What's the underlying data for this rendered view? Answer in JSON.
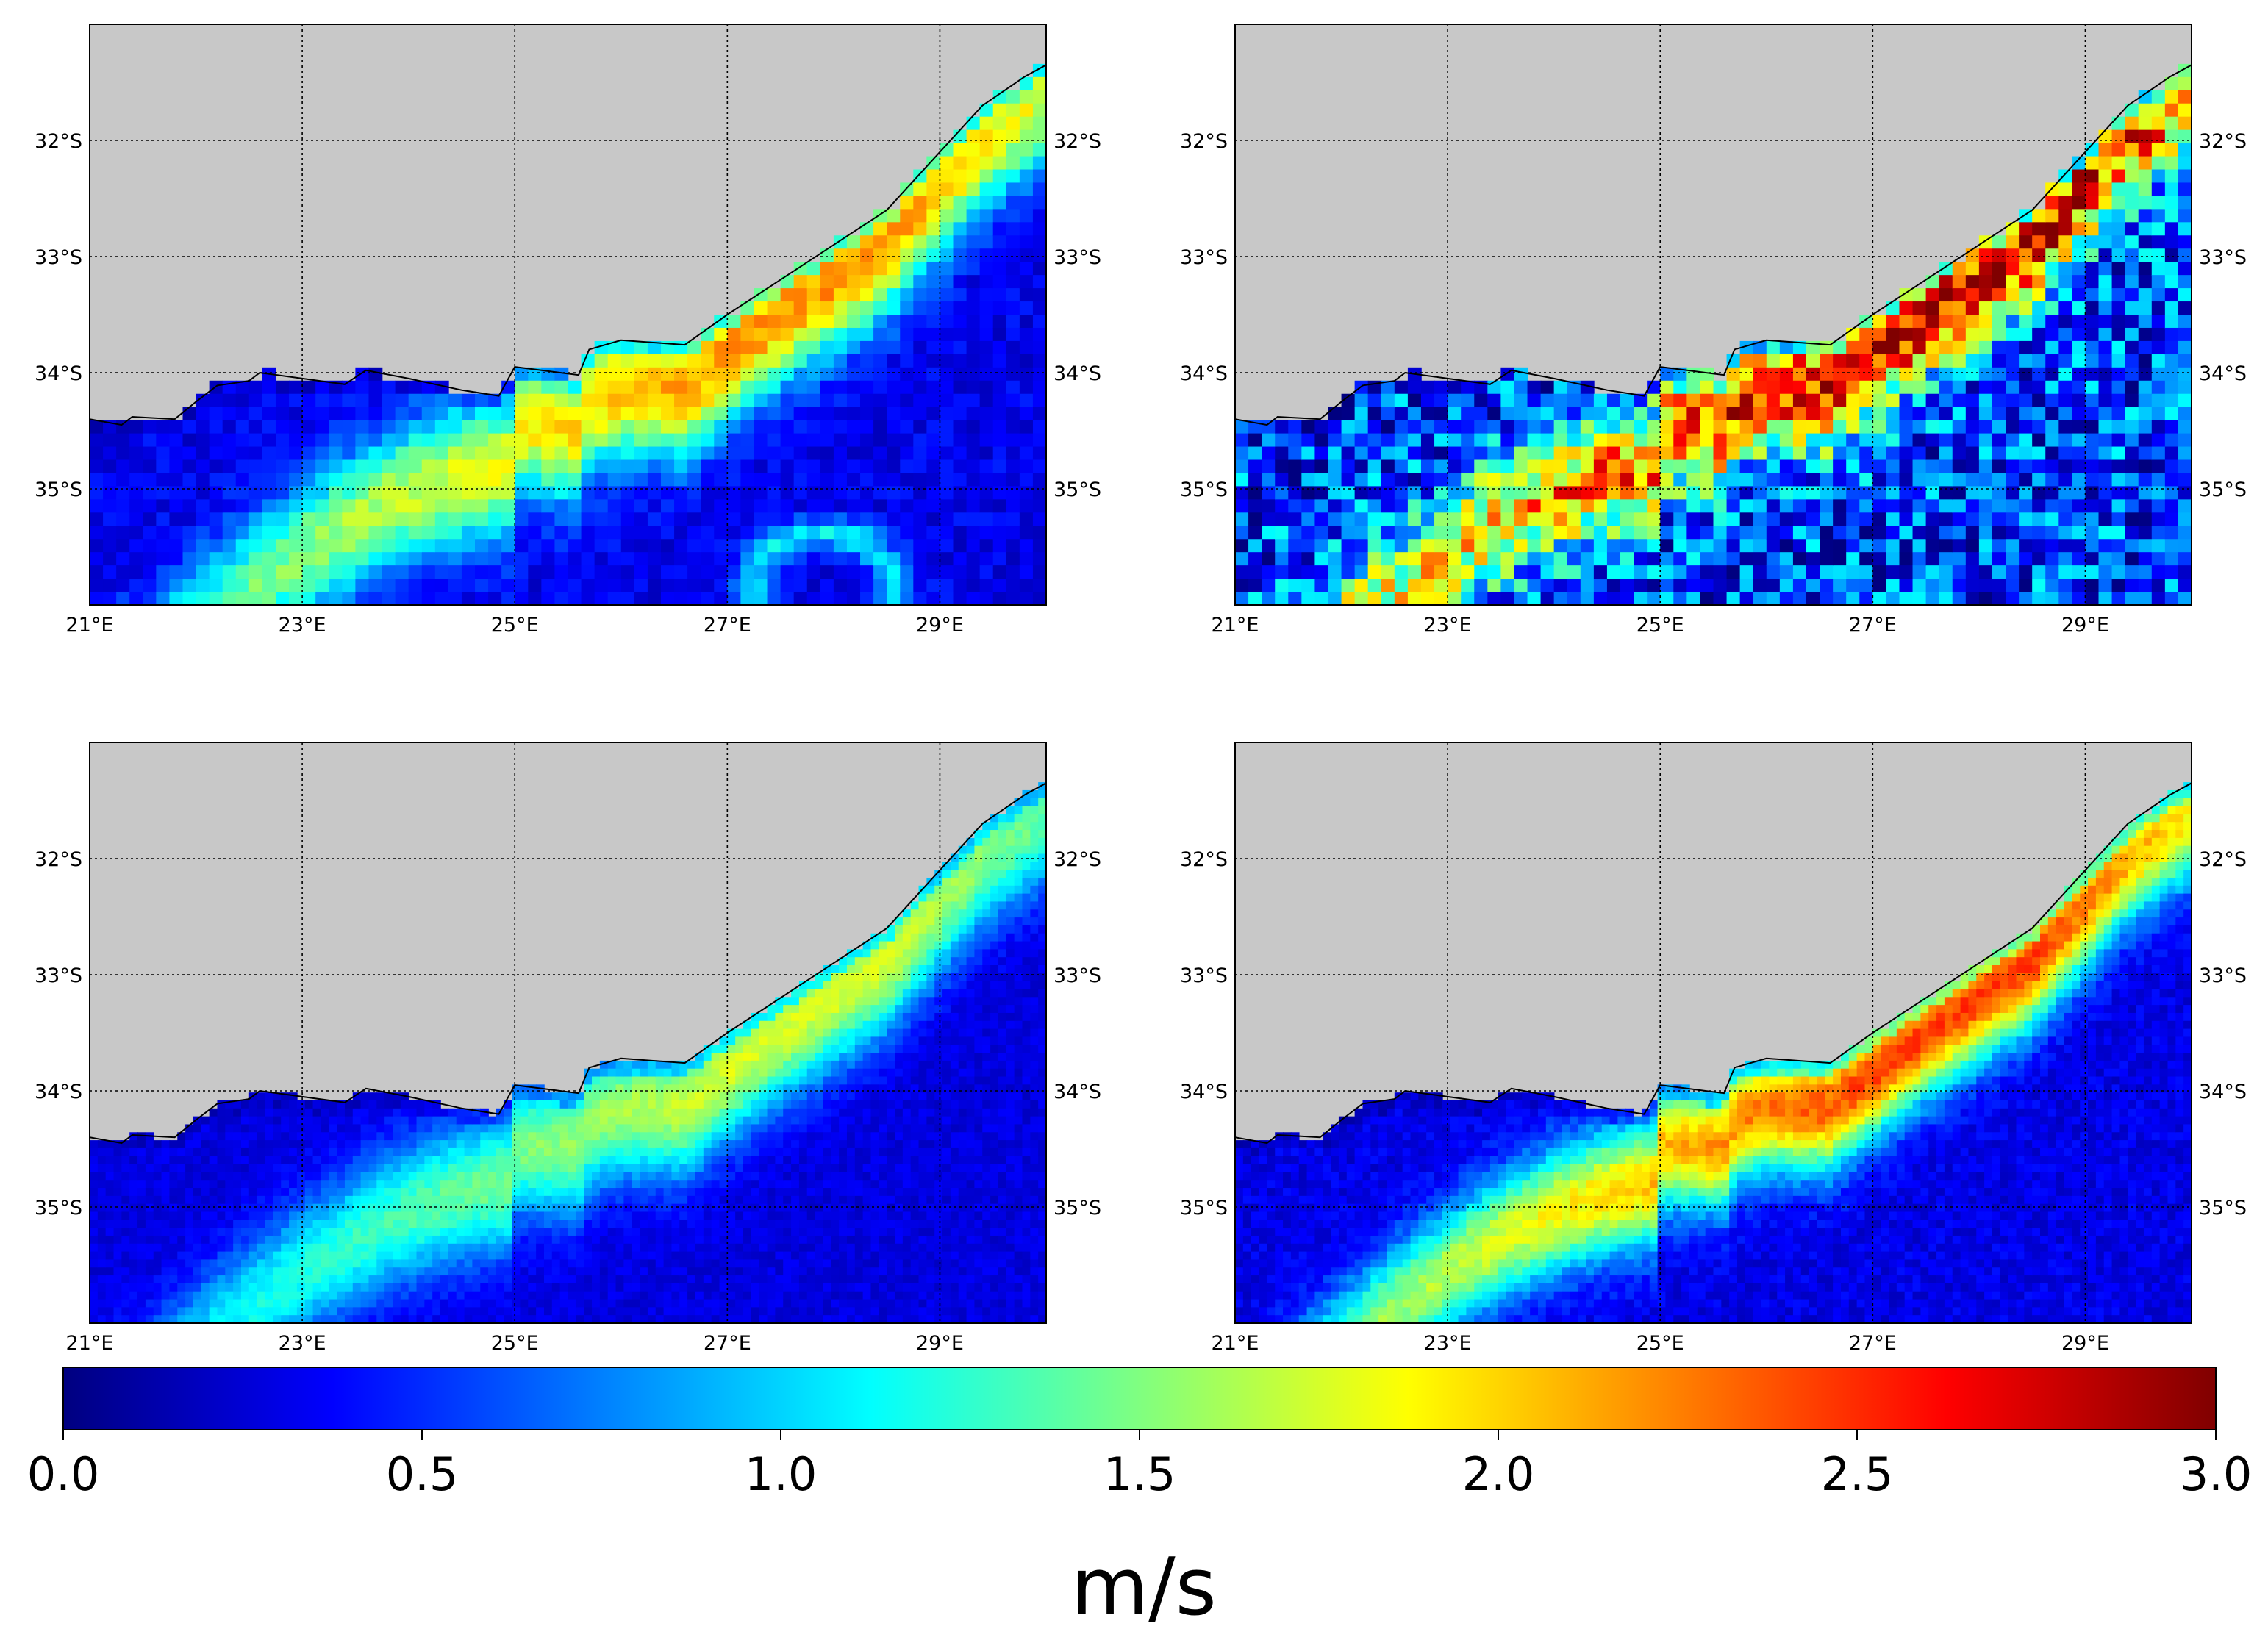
{
  "figure": {
    "type": "map-panels",
    "units_label": "m/s",
    "colormap": "jet",
    "land_color": "#c8c8c8"
  },
  "axes": {
    "lon_ticks": [
      "21°E",
      "23°E",
      "25°E",
      "27°E",
      "29°E"
    ],
    "lat_ticks": [
      "32°S",
      "33°S",
      "34°S",
      "35°S"
    ],
    "lon_values": [
      21,
      23,
      25,
      27,
      29
    ],
    "lat_values": [
      -32,
      -33,
      -34,
      -35
    ],
    "lon_range": [
      21,
      30
    ],
    "lat_range": [
      -36,
      -31
    ]
  },
  "colorbar": {
    "min": 0.0,
    "max": 3.0,
    "tick_labels": [
      "0.0",
      "0.5",
      "1.0",
      "1.5",
      "2.0",
      "2.5",
      "3.0"
    ],
    "tick_values": [
      0.0,
      0.5,
      1.0,
      1.5,
      2.0,
      2.5,
      3.0
    ]
  },
  "chart_data": {
    "type": "heatmap",
    "title": "",
    "xlabel": "",
    "ylabel": "",
    "value_unit": "m/s",
    "value_range": [
      0,
      3
    ],
    "panels": [
      {
        "id": "top-left",
        "resolution": "coarse",
        "current_peak_speed": 2.2,
        "current_width_deg": 0.42,
        "background_speed": 0.32,
        "noise": 0.05,
        "eddy": true
      },
      {
        "id": "top-right",
        "resolution": "coarse",
        "current_peak_speed": 2.7,
        "current_width_deg": 0.36,
        "background_speed": 0.55,
        "noise": 0.2,
        "eddy": false
      },
      {
        "id": "bottom-left",
        "resolution": "fine",
        "current_peak_speed": 1.75,
        "current_width_deg": 0.42,
        "background_speed": 0.28,
        "noise": 0.03,
        "eddy": false
      },
      {
        "id": "bottom-right",
        "resolution": "fine",
        "current_peak_speed": 2.45,
        "current_width_deg": 0.38,
        "background_speed": 0.3,
        "noise": 0.04,
        "eddy": false
      }
    ]
  }
}
